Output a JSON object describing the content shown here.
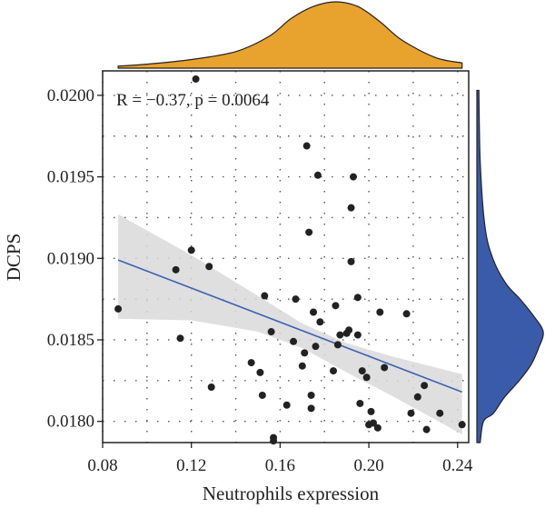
{
  "chart_data": {
    "type": "scatter",
    "xlabel": "Neutrophils expression",
    "ylabel": "DCPS",
    "annotation": "R = −0.37, p = 0.0064",
    "xlim": [
      0.08,
      0.245
    ],
    "ylim": [
      0.01787,
      0.02015
    ],
    "x_ticks": [
      0.08,
      0.12,
      0.16,
      0.2,
      0.24
    ],
    "x_tick_labels": [
      "0.08",
      "0.12",
      "0.16",
      "0.20",
      "0.24"
    ],
    "y_ticks": [
      0.018,
      0.0185,
      0.019,
      0.0195,
      0.02
    ],
    "y_tick_labels": [
      "0.0180",
      "0.0185",
      "0.0190",
      "0.0195",
      "0.0200"
    ],
    "grid": "dotted",
    "points": [
      {
        "x": 0.087,
        "y": 0.01869
      },
      {
        "x": 0.113,
        "y": 0.01893
      },
      {
        "x": 0.115,
        "y": 0.01851
      },
      {
        "x": 0.12,
        "y": 0.01905
      },
      {
        "x": 0.122,
        "y": 0.0201
      },
      {
        "x": 0.128,
        "y": 0.01895
      },
      {
        "x": 0.129,
        "y": 0.01821
      },
      {
        "x": 0.147,
        "y": 0.01836
      },
      {
        "x": 0.151,
        "y": 0.0183
      },
      {
        "x": 0.152,
        "y": 0.01816
      },
      {
        "x": 0.153,
        "y": 0.01877
      },
      {
        "x": 0.156,
        "y": 0.01855
      },
      {
        "x": 0.157,
        "y": 0.0179
      },
      {
        "x": 0.157,
        "y": 0.01788
      },
      {
        "x": 0.163,
        "y": 0.0181
      },
      {
        "x": 0.166,
        "y": 0.01849
      },
      {
        "x": 0.167,
        "y": 0.01875
      },
      {
        "x": 0.17,
        "y": 0.01834
      },
      {
        "x": 0.171,
        "y": 0.01842
      },
      {
        "x": 0.172,
        "y": 0.01969
      },
      {
        "x": 0.173,
        "y": 0.01916
      },
      {
        "x": 0.174,
        "y": 0.01816
      },
      {
        "x": 0.174,
        "y": 0.01808
      },
      {
        "x": 0.175,
        "y": 0.01867
      },
      {
        "x": 0.176,
        "y": 0.01846
      },
      {
        "x": 0.177,
        "y": 0.01951
      },
      {
        "x": 0.178,
        "y": 0.01861
      },
      {
        "x": 0.184,
        "y": 0.01831
      },
      {
        "x": 0.185,
        "y": 0.01871
      },
      {
        "x": 0.186,
        "y": 0.01847
      },
      {
        "x": 0.187,
        "y": 0.01853
      },
      {
        "x": 0.19,
        "y": 0.01854
      },
      {
        "x": 0.191,
        "y": 0.01856
      },
      {
        "x": 0.192,
        "y": 0.01931
      },
      {
        "x": 0.192,
        "y": 0.01898
      },
      {
        "x": 0.193,
        "y": 0.0195
      },
      {
        "x": 0.195,
        "y": 0.01876
      },
      {
        "x": 0.195,
        "y": 0.01853
      },
      {
        "x": 0.196,
        "y": 0.01811
      },
      {
        "x": 0.197,
        "y": 0.01831
      },
      {
        "x": 0.199,
        "y": 0.01827
      },
      {
        "x": 0.2,
        "y": 0.01798
      },
      {
        "x": 0.201,
        "y": 0.01806
      },
      {
        "x": 0.202,
        "y": 0.01799
      },
      {
        "x": 0.204,
        "y": 0.01796
      },
      {
        "x": 0.205,
        "y": 0.01867
      },
      {
        "x": 0.207,
        "y": 0.01833
      },
      {
        "x": 0.217,
        "y": 0.01866
      },
      {
        "x": 0.219,
        "y": 0.01805
      },
      {
        "x": 0.222,
        "y": 0.01815
      },
      {
        "x": 0.225,
        "y": 0.01822
      },
      {
        "x": 0.226,
        "y": 0.01795
      },
      {
        "x": 0.232,
        "y": 0.01805
      },
      {
        "x": 0.242,
        "y": 0.01798
      }
    ],
    "regression": {
      "x": [
        0.087,
        0.242
      ],
      "y": [
        0.01899,
        0.01818
      ]
    },
    "confidence_band": {
      "x": [
        0.087,
        0.12,
        0.15,
        0.17,
        0.19,
        0.21,
        0.242
      ],
      "upper": [
        0.01927,
        0.01902,
        0.01877,
        0.0186,
        0.01848,
        0.0184,
        0.01829
      ],
      "lower": [
        0.01863,
        0.01862,
        0.01855,
        0.01845,
        0.0183,
        0.01816,
        0.01792
      ]
    },
    "marginal_top": {
      "color": "#E8A22E",
      "x": [
        0.087,
        0.1,
        0.12,
        0.14,
        0.155,
        0.165,
        0.175,
        0.185,
        0.195,
        0.205,
        0.215,
        0.23,
        0.242
      ],
      "density": [
        0.03,
        0.06,
        0.13,
        0.25,
        0.48,
        0.75,
        0.93,
        1.0,
        0.93,
        0.7,
        0.42,
        0.16,
        0.08
      ]
    },
    "marginal_right": {
      "color": "#3A5BA9",
      "y": [
        0.02003,
        0.0196,
        0.0192,
        0.019,
        0.01885,
        0.01875,
        0.01865,
        0.01855,
        0.01845,
        0.01835,
        0.01825,
        0.01815,
        0.01805,
        0.018,
        0.01787
      ],
      "density": [
        0.03,
        0.05,
        0.12,
        0.24,
        0.43,
        0.65,
        0.85,
        1.0,
        0.93,
        0.82,
        0.64,
        0.42,
        0.25,
        0.1,
        0.05
      ]
    },
    "colors": {
      "point": "#222222",
      "line": "#3B63B3",
      "band": "#D9D9D9"
    }
  }
}
